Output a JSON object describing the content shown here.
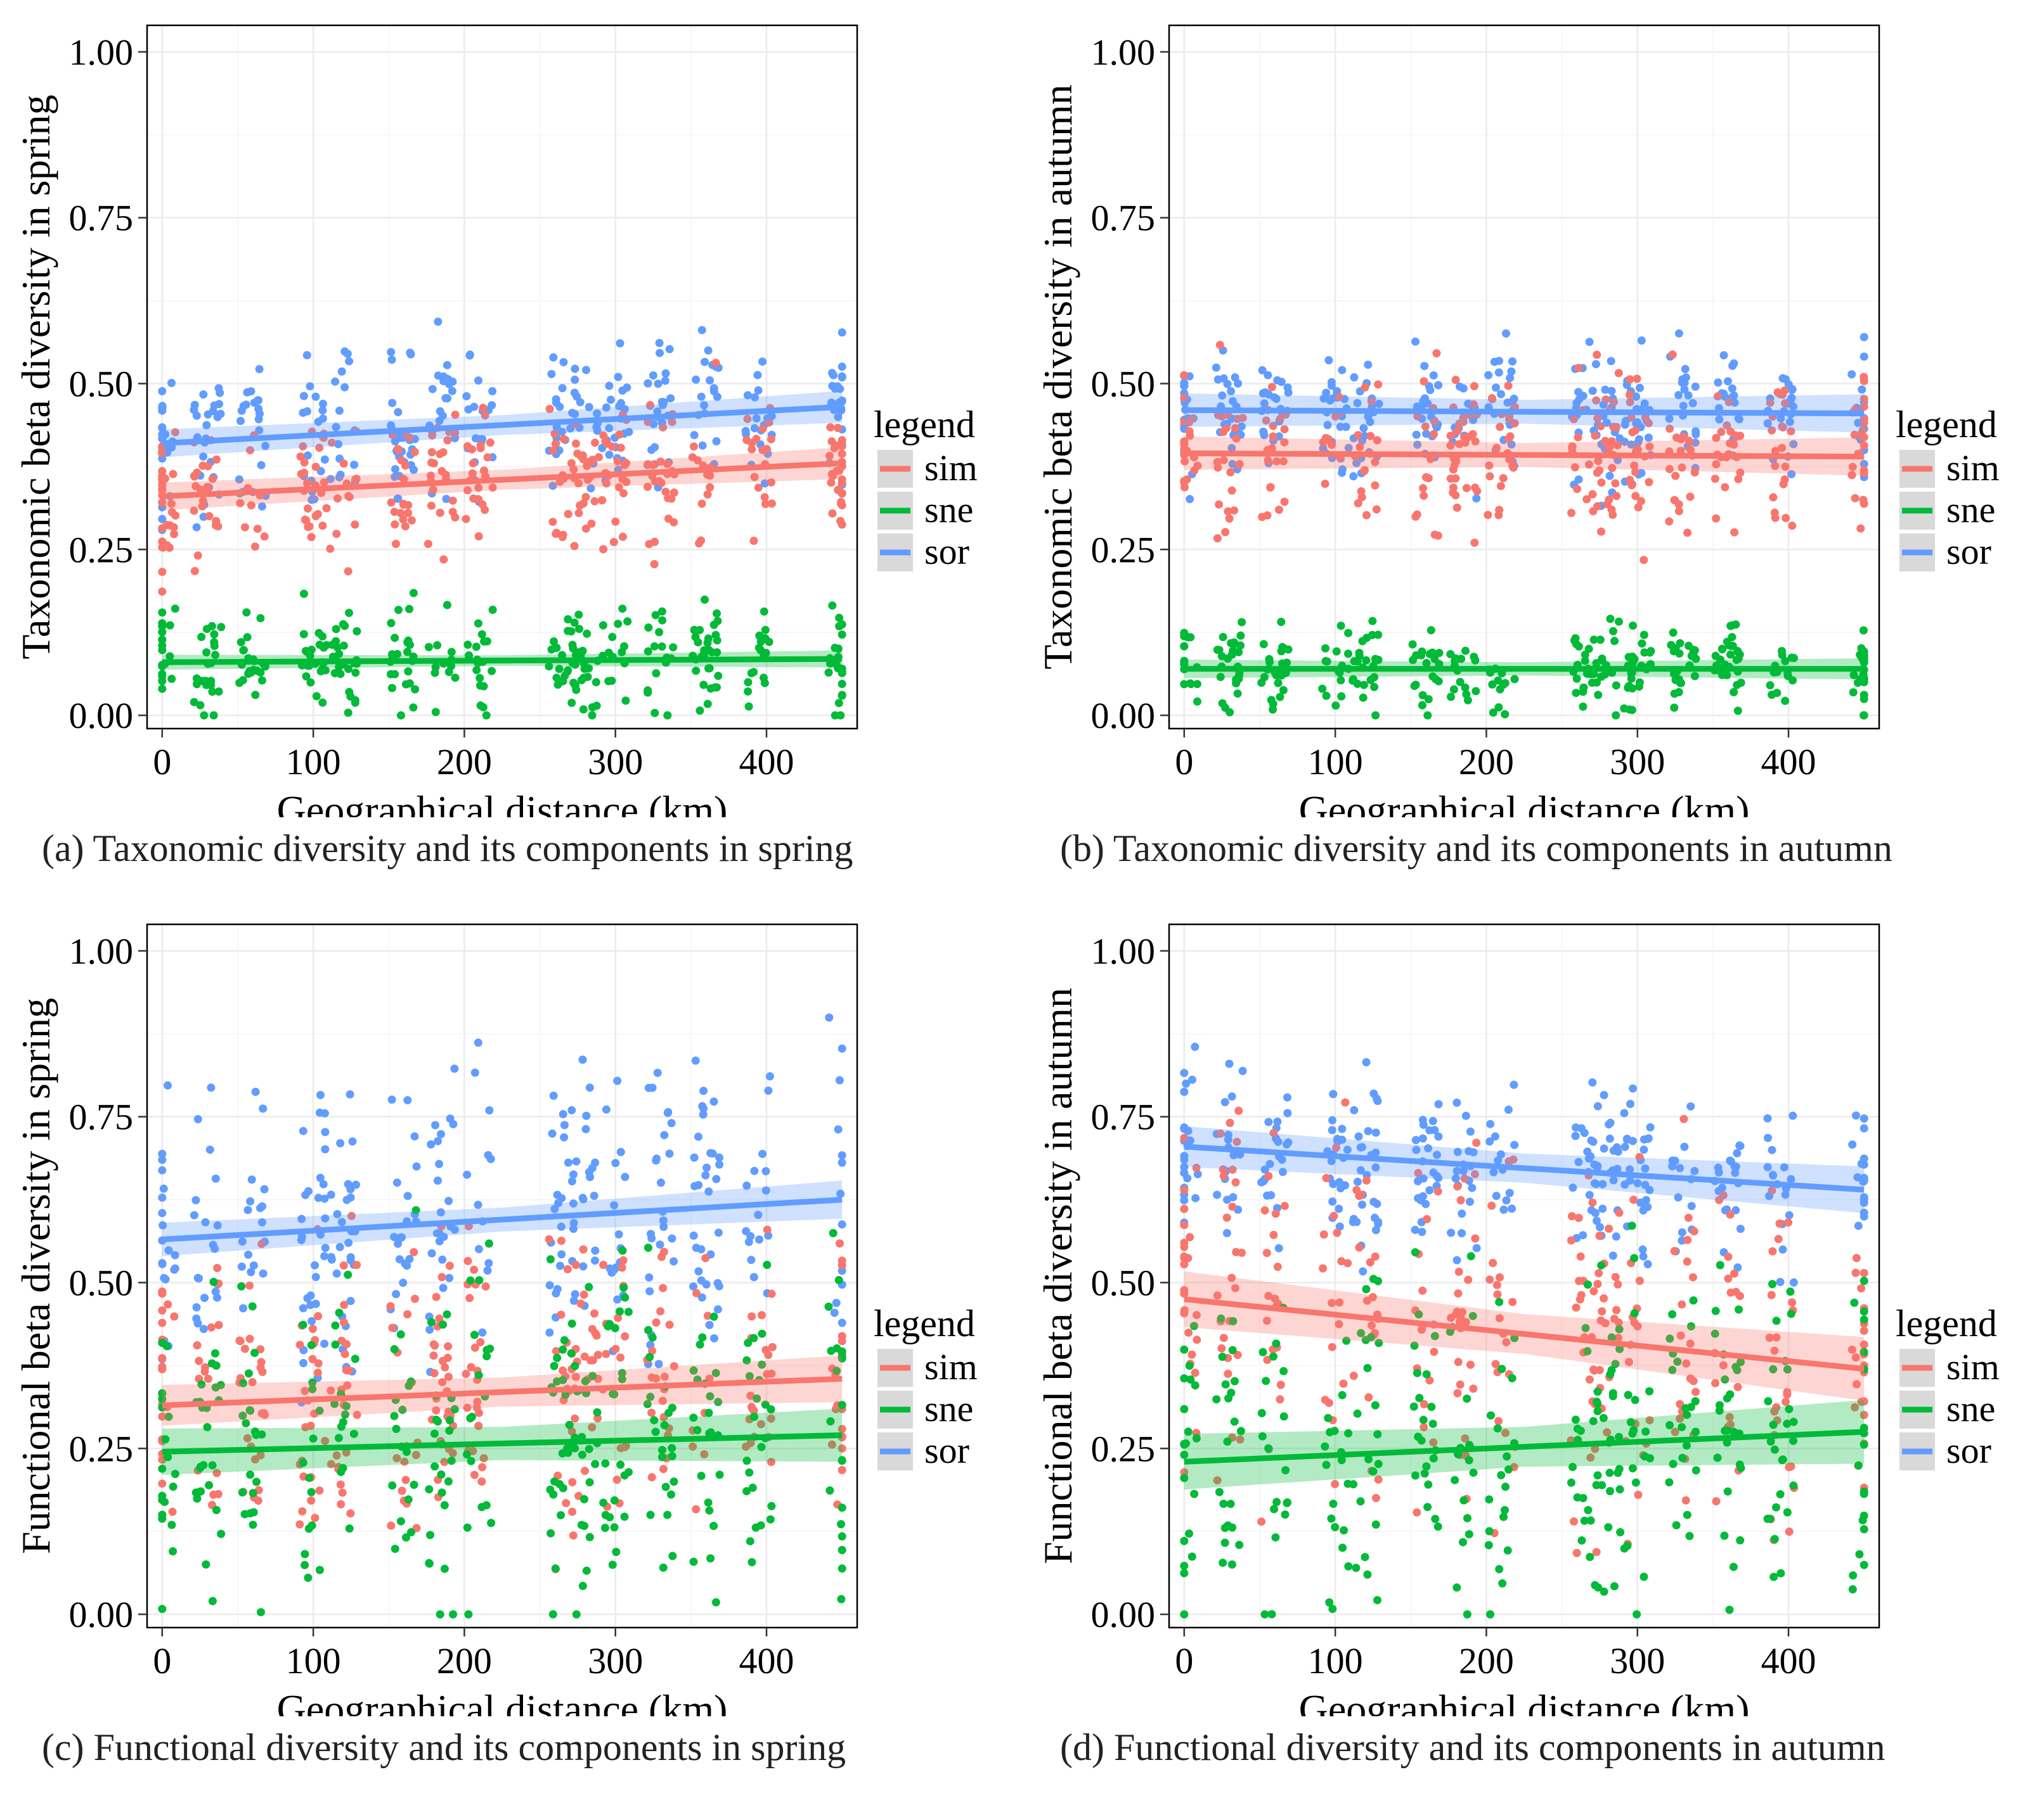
{
  "chart_data": [
    {
      "type": "scatter",
      "panel": "a",
      "caption": "(a) Taxonomic diversity and  its components in spring",
      "xlabel": "Geographical distance (km)",
      "ylabel": "Taxonomic beta diversity in spring",
      "xlim": [
        -10,
        460
      ],
      "ylim": [
        -0.02,
        1.04
      ],
      "xticks": [
        0,
        100,
        200,
        300,
        400
      ],
      "xtick_labels": [
        "0",
        "100",
        "200",
        "300",
        "400"
      ],
      "yticks": [
        0,
        0.25,
        0.5,
        0.75,
        1
      ],
      "ytick_labels": [
        "0.00",
        "0.25",
        "0.50",
        "0.75",
        "1.00"
      ],
      "grid": true,
      "legend": {
        "title": "legend",
        "position": "right",
        "entries": [
          "sim",
          "sne",
          "sor"
        ]
      },
      "series": [
        {
          "name": "sim",
          "color": "#F8766D",
          "x": [
            0,
            450
          ],
          "y": [
            0.33,
            0.38
          ],
          "band": 0.015,
          "cloud": {
            "center": [
              0.33,
              0.38
            ],
            "spread": 0.09
          }
        },
        {
          "name": "sne",
          "color": "#00BA38",
          "x": [
            0,
            450
          ],
          "y": [
            0.08,
            0.085
          ],
          "band": 0.008,
          "cloud": {
            "center": [
              0.08,
              0.085
            ],
            "spread": 0.06
          }
        },
        {
          "name": "sor",
          "color": "#619CFF",
          "x": [
            0,
            450
          ],
          "y": [
            0.41,
            0.465
          ],
          "band": 0.015,
          "cloud": {
            "center": [
              0.41,
              0.465
            ],
            "spread": 0.09
          }
        }
      ]
    },
    {
      "type": "scatter",
      "panel": "b",
      "caption": "(b) Taxonomic diversity and  its components in autumn",
      "xlabel": "Geographical distance (km)",
      "ylabel": "Taxonomic beta diversity in autumn",
      "xlim": [
        -10,
        460
      ],
      "ylim": [
        -0.02,
        1.04
      ],
      "xticks": [
        0,
        100,
        200,
        300,
        400
      ],
      "xtick_labels": [
        "0",
        "100",
        "200",
        "300",
        "400"
      ],
      "yticks": [
        0,
        0.25,
        0.5,
        0.75,
        1
      ],
      "ytick_labels": [
        "0.00",
        "0.25",
        "0.50",
        "0.75",
        "1.00"
      ],
      "grid": true,
      "legend": {
        "title": "legend",
        "position": "right",
        "entries": [
          "sim",
          "sne",
          "sor"
        ]
      },
      "series": [
        {
          "name": "sim",
          "color": "#F8766D",
          "x": [
            0,
            450
          ],
          "y": [
            0.395,
            0.39
          ],
          "band": 0.018,
          "cloud": {
            "center": [
              0.395,
              0.39
            ],
            "spread": 0.09
          }
        },
        {
          "name": "sne",
          "color": "#00BA38",
          "x": [
            0,
            450
          ],
          "y": [
            0.07,
            0.07
          ],
          "band": 0.01,
          "cloud": {
            "center": [
              0.07,
              0.07
            ],
            "spread": 0.05
          }
        },
        {
          "name": "sor",
          "color": "#619CFF",
          "x": [
            0,
            450
          ],
          "y": [
            0.46,
            0.455
          ],
          "band": 0.018,
          "cloud": {
            "center": [
              0.46,
              0.455
            ],
            "spread": 0.08
          }
        }
      ]
    },
    {
      "type": "scatter",
      "panel": "c",
      "caption": "(c) Functional diversity and  its components in spring",
      "xlabel": "Geographical distance (km)",
      "ylabel": "Functional beta diversity in spring",
      "xlim": [
        -10,
        460
      ],
      "ylim": [
        -0.02,
        1.04
      ],
      "xticks": [
        0,
        100,
        200,
        300,
        400
      ],
      "xtick_labels": [
        "0",
        "100",
        "200",
        "300",
        "400"
      ],
      "yticks": [
        0,
        0.25,
        0.5,
        0.75,
        1
      ],
      "ytick_labels": [
        "0.00",
        "0.25",
        "0.50",
        "0.75",
        "1.00"
      ],
      "grid": true,
      "legend": {
        "title": "legend",
        "position": "right",
        "entries": [
          "sim",
          "sne",
          "sor"
        ]
      },
      "series": [
        {
          "name": "sim",
          "color": "#F8766D",
          "x": [
            0,
            450
          ],
          "y": [
            0.315,
            0.355
          ],
          "band": 0.022,
          "cloud": {
            "center": [
              0.315,
              0.355
            ],
            "spread": 0.17
          }
        },
        {
          "name": "sne",
          "color": "#00BA38",
          "x": [
            0,
            450
          ],
          "y": [
            0.245,
            0.27
          ],
          "band": 0.025,
          "cloud": {
            "center": [
              0.245,
              0.27
            ],
            "spread": 0.2
          }
        },
        {
          "name": "sor",
          "color": "#619CFF",
          "x": [
            0,
            450
          ],
          "y": [
            0.565,
            0.625
          ],
          "band": 0.018,
          "cloud": {
            "center": [
              0.565,
              0.625
            ],
            "spread": 0.16
          }
        }
      ]
    },
    {
      "type": "scatter",
      "panel": "d",
      "caption": "(d) Functional diversity and  its components in autumn",
      "xlabel": "Geographical distance (km)",
      "ylabel": "Functional beta diversity in autumn",
      "xlim": [
        -10,
        460
      ],
      "ylim": [
        -0.02,
        1.04
      ],
      "xticks": [
        0,
        100,
        200,
        300,
        400
      ],
      "xtick_labels": [
        "0",
        "100",
        "200",
        "300",
        "400"
      ],
      "yticks": [
        0,
        0.25,
        0.5,
        0.75,
        1
      ],
      "ytick_labels": [
        "0.00",
        "0.25",
        "0.50",
        "0.75",
        "1.00"
      ],
      "grid": true,
      "legend": {
        "title": "legend",
        "position": "right",
        "entries": [
          "sim",
          "sne",
          "sor"
        ]
      },
      "series": [
        {
          "name": "sim",
          "color": "#F8766D",
          "x": [
            0,
            450
          ],
          "y": [
            0.475,
            0.37
          ],
          "band": 0.03,
          "cloud": {
            "center": [
              0.475,
              0.37
            ],
            "spread": 0.2
          }
        },
        {
          "name": "sne",
          "color": "#00BA38",
          "x": [
            0,
            450
          ],
          "y": [
            0.23,
            0.275
          ],
          "band": 0.03,
          "cloud": {
            "center": [
              0.23,
              0.275
            ],
            "spread": 0.2
          }
        },
        {
          "name": "sor",
          "color": "#619CFF",
          "x": [
            0,
            450
          ],
          "y": [
            0.705,
            0.64
          ],
          "band": 0.022,
          "cloud": {
            "center": [
              0.705,
              0.64
            ],
            "spread": 0.1
          }
        }
      ]
    }
  ]
}
